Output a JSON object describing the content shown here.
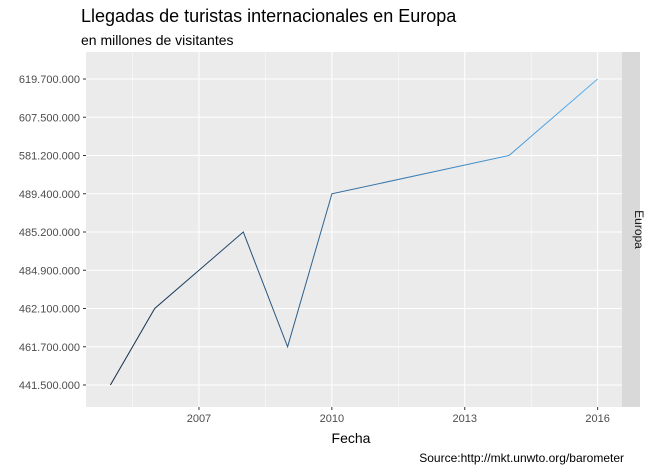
{
  "chart_data": {
    "type": "line",
    "title": "Llegadas de turistas internacionales en Europa",
    "subtitle": "en millones de visitantes",
    "xlabel": "Fecha",
    "ylabel": "",
    "caption": "Source:http://mkt.unwto.org/barometer",
    "facet": "Europa",
    "x_ticks": [
      "2007",
      "2010",
      "2013",
      "2016"
    ],
    "x_tick_values": [
      2007,
      2010,
      2013,
      2016
    ],
    "y_categories": [
      "441.500.000",
      "461.700.000",
      "462.100.000",
      "484.900.000",
      "485.200.000",
      "489.400.000",
      "581.200.000",
      "607.500.000",
      "619.700.000"
    ],
    "y_axis_kind": "discrete",
    "xlim": [
      2005,
      2016
    ],
    "series": [
      {
        "x": [
          2005,
          2006,
          2007,
          2008,
          2009,
          2010,
          2011,
          2012,
          2013,
          2014,
          2015,
          2016
        ],
        "y": [
          "441.500.000",
          "462.100.000",
          "484.900.000",
          "485.200.000",
          "461.700.000",
          "489.400.000",
          "",
          "",
          "",
          "581.200.000",
          "",
          "619.700.000"
        ],
        "points": [
          [
            2005,
            "441.500.000"
          ],
          [
            2006,
            "462.100.000"
          ],
          [
            2008,
            "485.200.000"
          ],
          [
            2009,
            "461.700.000"
          ],
          [
            2010,
            "489.400.000"
          ],
          [
            2014,
            "581.200.000"
          ],
          [
            2016,
            "619.700.000"
          ]
        ],
        "color_low": "#132B43",
        "color_high": "#56B1F7"
      }
    ],
    "background": "#EBEBEB",
    "grid": true,
    "strip_color": "#D9D9D9"
  }
}
